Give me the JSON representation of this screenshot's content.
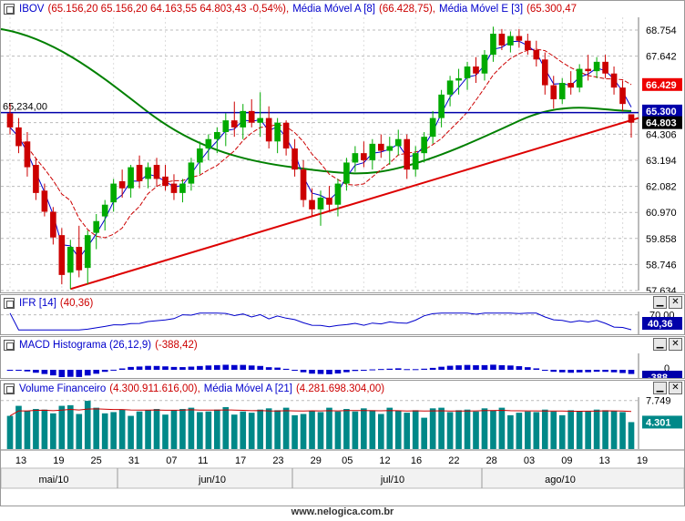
{
  "main": {
    "title_parts": [
      {
        "text": "IBOV",
        "color": "#0000cc"
      },
      {
        "text": "(65.156,20  65.156,20  64.163,55  64.803,43  -0,54%),",
        "color": "#cc0000"
      },
      {
        "text": "Média Móvel A [8]",
        "color": "#0000cc"
      },
      {
        "text": "(66.428,75),",
        "color": "#cc0000"
      },
      {
        "text": "Média Móvel E [3]",
        "color": "#0000cc"
      },
      {
        "text": "(65.300,47",
        "color": "#cc0000"
      }
    ],
    "ticks": [
      "68.754",
      "67.642",
      "66.429",
      "65.300",
      "64.803",
      "64.306",
      "63.194",
      "62.082",
      "60.970",
      "59.858",
      "58.746",
      "57.634"
    ],
    "ref_label": "65,234,00",
    "badges": {
      "sma": "66.429",
      "ema": "65.300",
      "last": "64.803"
    }
  },
  "ifr": {
    "title_parts": [
      {
        "text": "IFR [14]",
        "color": "#0000cc"
      },
      {
        "text": "(40,36)",
        "color": "#cc0000"
      }
    ],
    "ticks": [
      "70,00"
    ],
    "badge": "40,36"
  },
  "macd": {
    "title_parts": [
      {
        "text": "MACD Histograma (26,12,9)",
        "color": "#0000cc"
      },
      {
        "text": "(-388,42)",
        "color": "#cc0000"
      }
    ],
    "ticks": [
      "0"
    ],
    "badge": "-388"
  },
  "volume": {
    "title_parts": [
      {
        "text": "Volume Financeiro",
        "color": "#0000cc"
      },
      {
        "text": "(4.300.911.616,00),",
        "color": "#cc0000"
      },
      {
        "text": "Média Móvel A [21]",
        "color": "#0000cc"
      },
      {
        "text": "(4.281.698.304,00)",
        "color": "#cc0000"
      }
    ],
    "ticks": [
      "7.749"
    ],
    "badge": "4.301"
  },
  "xaxis": {
    "days": [
      "13",
      "19",
      "25",
      "31",
      "07",
      "11",
      "17",
      "23",
      "29",
      "05",
      "12",
      "16",
      "22",
      "28",
      "03",
      "09",
      "13",
      "19"
    ],
    "months": [
      "mai/10",
      "jun/10",
      "jul/10",
      "ago/10"
    ]
  },
  "footer": "www.nelogica.com.br",
  "colors": {
    "up": "#00aa00",
    "down": "#cc0000",
    "sma": "#cc0000",
    "ema": "#0000cc",
    "long_ma": "#008000",
    "trend": "#dd0000",
    "hline": "#0000aa"
  },
  "chart_data": {
    "type": "candlestick",
    "ylim": [
      57634,
      69300
    ],
    "candles": [
      [
        65.2,
        65.6,
        64.3,
        64.6
      ],
      [
        64.6,
        65.0,
        63.5,
        63.8
      ],
      [
        64.0,
        64.4,
        62.5,
        62.9
      ],
      [
        63.0,
        63.3,
        61.5,
        61.8
      ],
      [
        61.9,
        62.2,
        60.8,
        61.0
      ],
      [
        61.0,
        61.2,
        59.6,
        59.9
      ],
      [
        60.0,
        60.3,
        57.9,
        58.3
      ],
      [
        58.4,
        59.8,
        57.7,
        59.5
      ],
      [
        59.5,
        60.4,
        58.2,
        58.5
      ],
      [
        58.6,
        60.2,
        57.9,
        60.0
      ],
      [
        60.1,
        60.9,
        59.4,
        60.6
      ],
      [
        60.8,
        61.5,
        60.2,
        61.3
      ],
      [
        61.4,
        62.4,
        61.0,
        62.2
      ],
      [
        62.3,
        62.8,
        61.6,
        62.0
      ],
      [
        62.0,
        63.0,
        61.6,
        62.9
      ],
      [
        63.0,
        63.4,
        62.0,
        62.3
      ],
      [
        62.4,
        63.1,
        62.0,
        62.9
      ],
      [
        63.0,
        63.3,
        62.1,
        62.4
      ],
      [
        62.5,
        63.0,
        61.9,
        62.1
      ],
      [
        62.2,
        62.6,
        61.5,
        61.8
      ],
      [
        61.8,
        62.4,
        61.4,
        62.2
      ],
      [
        62.2,
        63.3,
        61.9,
        63.1
      ],
      [
        63.1,
        64.0,
        62.6,
        63.7
      ],
      [
        63.7,
        64.3,
        63.2,
        64.1
      ],
      [
        64.1,
        64.6,
        63.5,
        64.4
      ],
      [
        64.4,
        65.2,
        63.8,
        64.9
      ],
      [
        64.9,
        65.7,
        64.2,
        64.6
      ],
      [
        64.6,
        65.6,
        64.1,
        65.3
      ],
      [
        65.3,
        65.8,
        64.6,
        64.8
      ],
      [
        64.8,
        66.1,
        64.2,
        65.0
      ],
      [
        65.0,
        65.5,
        63.7,
        64.0
      ],
      [
        64.0,
        65.0,
        63.5,
        64.8
      ],
      [
        64.8,
        64.9,
        63.4,
        63.7
      ],
      [
        63.7,
        64.1,
        62.5,
        62.8
      ],
      [
        62.8,
        63.2,
        61.2,
        61.5
      ],
      [
        61.5,
        62.0,
        60.8,
        61.1
      ],
      [
        61.1,
        61.9,
        60.4,
        61.6
      ],
      [
        61.6,
        62.1,
        61.0,
        61.3
      ],
      [
        61.3,
        62.4,
        60.8,
        62.2
      ],
      [
        62.2,
        63.3,
        61.9,
        63.1
      ],
      [
        63.1,
        63.8,
        62.7,
        63.5
      ],
      [
        63.5,
        64.0,
        62.9,
        63.2
      ],
      [
        63.2,
        64.1,
        62.8,
        63.9
      ],
      [
        63.9,
        64.3,
        63.3,
        63.6
      ],
      [
        63.6,
        64.2,
        63.0,
        63.8
      ],
      [
        63.8,
        64.5,
        63.4,
        64.1
      ],
      [
        64.1,
        64.3,
        62.4,
        62.8
      ],
      [
        62.8,
        63.8,
        62.5,
        63.5
      ],
      [
        63.5,
        64.4,
        63.1,
        64.2
      ],
      [
        64.2,
        65.3,
        63.9,
        65.0
      ],
      [
        65.0,
        66.2,
        64.6,
        66.0
      ],
      [
        66.0,
        66.8,
        65.5,
        66.6
      ],
      [
        66.6,
        67.1,
        66.0,
        66.7
      ],
      [
        66.7,
        67.4,
        66.2,
        67.2
      ],
      [
        67.2,
        67.6,
        66.5,
        66.9
      ],
      [
        66.9,
        67.9,
        66.6,
        67.7
      ],
      [
        67.7,
        68.9,
        67.4,
        68.6
      ],
      [
        68.6,
        68.8,
        67.9,
        68.1
      ],
      [
        68.1,
        68.7,
        67.8,
        68.5
      ],
      [
        68.5,
        68.8,
        68.0,
        68.3
      ],
      [
        68.3,
        68.6,
        67.7,
        67.9
      ],
      [
        67.9,
        68.3,
        67.2,
        67.5
      ],
      [
        67.5,
        67.8,
        66.0,
        66.4
      ],
      [
        66.4,
        66.8,
        65.4,
        65.8
      ],
      [
        65.8,
        66.7,
        65.6,
        66.5
      ],
      [
        66.5,
        67.0,
        66.0,
        66.3
      ],
      [
        66.3,
        67.3,
        66.1,
        67.1
      ],
      [
        67.1,
        67.7,
        66.6,
        67.0
      ],
      [
        67.0,
        67.6,
        66.7,
        67.4
      ],
      [
        67.4,
        67.7,
        66.7,
        66.9
      ],
      [
        66.9,
        67.2,
        66.0,
        66.3
      ],
      [
        66.3,
        66.6,
        65.3,
        65.6
      ],
      [
        65.16,
        65.16,
        64.16,
        64.8
      ]
    ],
    "volume": [
      5.3,
      6.9,
      6.1,
      6.4,
      6.3,
      5.7,
      6.9,
      7.0,
      5.6,
      7.7,
      6.6,
      5.7,
      5.9,
      6.3,
      5.3,
      6.0,
      6.2,
      6.4,
      5.5,
      6.2,
      6.4,
      6.6,
      5.9,
      6.0,
      6.3,
      6.7,
      5.5,
      6.0,
      5.8,
      6.3,
      6.5,
      6.2,
      6.6,
      5.4,
      5.6,
      6.1,
      5.9,
      6.6,
      6.0,
      6.4,
      6.0,
      6.5,
      6.2,
      5.6,
      6.6,
      6.1,
      5.8,
      6.2,
      5.0,
      6.5,
      6.6,
      5.9,
      6.2,
      6.3,
      6.0,
      6.5,
      6.2,
      6.6,
      5.4,
      5.8,
      6.0,
      5.9,
      6.3,
      6.0,
      5.4,
      6.2,
      6.1,
      6.0,
      6.3,
      6.2,
      6.1,
      5.9,
      4.3
    ]
  }
}
